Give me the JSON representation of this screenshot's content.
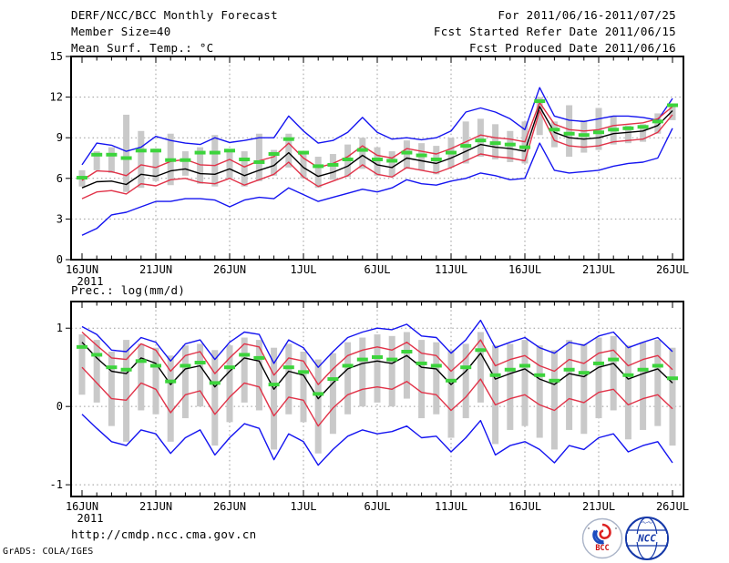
{
  "header": {
    "title": "DERF/NCC/BCC Monthly Forecast",
    "member_size": "Member Size=40",
    "for_range": "For 2011/06/16-2011/07/25",
    "refer_date": "Fcst Started Refer Date 2011/06/15",
    "produced_date": "Fcst Produced Date 2011/06/16"
  },
  "footer": {
    "url": "http://cmdp.ncc.cma.gov.cn",
    "grads_credit": "GrADS: COLA/IGES",
    "bcc_logo_label": "BCC",
    "ncc_logo_label": "NCC"
  },
  "colors": {
    "max_min_line": "#1414f0",
    "std_line": "#e13248",
    "mean_line": "#000000",
    "climatology_dash": "#3cd43c",
    "spread_bar": "#c9c9c9",
    "grid": "#999999",
    "frame": "#000000"
  },
  "chart_data": [
    {
      "type": "line",
      "title": "Mean Surf. Temp.: °C",
      "x_start": "16JUN2011",
      "x_step_days": 1,
      "n_points": 41,
      "x_tick_labels": [
        "16JUN",
        "21JUN",
        "26JUN",
        "1JUL",
        "6JUL",
        "11JUL",
        "16JUL",
        "21JUL",
        "26JUL"
      ],
      "x_sub_label": "2011",
      "ylim": [
        0,
        15
      ],
      "yticks": [
        0,
        3,
        6,
        9,
        12,
        15
      ],
      "grid": true,
      "series": [
        {
          "name": "ensemble-max",
          "color": "max_min_line",
          "values": [
            7.0,
            8.6,
            8.45,
            8.0,
            8.3,
            9.1,
            8.8,
            8.6,
            8.5,
            9.0,
            8.65,
            8.8,
            9.0,
            9.0,
            10.6,
            9.5,
            8.6,
            8.8,
            9.4,
            10.5,
            9.4,
            8.9,
            9.0,
            8.85,
            9.0,
            9.5,
            10.9,
            11.2,
            10.9,
            10.4,
            9.6,
            12.7,
            10.6,
            10.3,
            10.2,
            10.4,
            10.6,
            10.6,
            10.5,
            10.3,
            11.9
          ]
        },
        {
          "name": "ensemble-min",
          "color": "max_min_line",
          "values": [
            1.8,
            2.3,
            3.3,
            3.5,
            3.9,
            4.3,
            4.3,
            4.5,
            4.5,
            4.4,
            3.9,
            4.4,
            4.6,
            4.5,
            5.3,
            4.8,
            4.3,
            4.6,
            4.9,
            5.2,
            5.0,
            5.3,
            5.9,
            5.6,
            5.5,
            5.8,
            6.0,
            6.4,
            6.2,
            5.9,
            6.0,
            8.6,
            6.6,
            6.4,
            6.5,
            6.6,
            6.9,
            7.1,
            7.2,
            7.5,
            9.7
          ]
        },
        {
          "name": "mean-plus-std",
          "color": "std_line",
          "values": [
            5.85,
            6.55,
            6.5,
            6.2,
            7.0,
            6.8,
            7.25,
            7.4,
            7.0,
            6.95,
            7.4,
            6.85,
            7.3,
            7.6,
            8.6,
            7.5,
            6.8,
            7.1,
            7.6,
            8.4,
            7.7,
            7.5,
            8.2,
            8.0,
            7.8,
            8.2,
            8.7,
            9.2,
            9.0,
            8.9,
            8.7,
            11.6,
            10.0,
            9.6,
            9.5,
            9.6,
            9.9,
            10.0,
            10.1,
            10.4,
            11.3
          ]
        },
        {
          "name": "mean-minus-std",
          "color": "std_line",
          "values": [
            4.5,
            5.0,
            5.1,
            4.85,
            5.6,
            5.45,
            5.9,
            6.0,
            5.7,
            5.6,
            6.0,
            5.5,
            5.9,
            6.3,
            7.2,
            6.1,
            5.4,
            5.8,
            6.2,
            7.0,
            6.3,
            6.1,
            6.8,
            6.6,
            6.4,
            6.8,
            7.3,
            7.8,
            7.6,
            7.5,
            7.3,
            11.0,
            8.8,
            8.4,
            8.3,
            8.4,
            8.7,
            8.8,
            8.9,
            9.4,
            10.7
          ]
        },
        {
          "name": "ensemble-mean",
          "color": "mean_line",
          "values": [
            5.3,
            5.75,
            5.8,
            5.55,
            6.3,
            6.15,
            6.55,
            6.7,
            6.35,
            6.3,
            6.7,
            6.2,
            6.6,
            6.95,
            7.9,
            6.8,
            6.15,
            6.45,
            6.9,
            7.7,
            7.0,
            6.8,
            7.5,
            7.3,
            7.1,
            7.5,
            8.0,
            8.5,
            8.3,
            8.2,
            8.0,
            11.3,
            9.4,
            9.0,
            8.9,
            9.0,
            9.3,
            9.4,
            9.5,
            9.9,
            11.0
          ]
        },
        {
          "name": "climatology",
          "color": "climatology_dash",
          "style": "dash-markers",
          "values": [
            6.05,
            7.75,
            7.75,
            7.5,
            8.05,
            8.05,
            7.35,
            7.35,
            7.9,
            7.9,
            8.05,
            7.4,
            7.2,
            7.8,
            8.9,
            7.9,
            6.9,
            7.0,
            7.4,
            8.1,
            7.4,
            7.3,
            7.9,
            7.7,
            7.4,
            7.9,
            8.4,
            8.8,
            8.6,
            8.5,
            8.3,
            11.7,
            9.6,
            9.3,
            9.2,
            9.4,
            9.6,
            9.7,
            9.8,
            10.2,
            11.4
          ]
        }
      ],
      "bars": {
        "name": "ensemble-spread",
        "color": "spread_bar",
        "high": [
          6.6,
          8.0,
          8.3,
          10.7,
          9.5,
          8.2,
          9.3,
          8.0,
          8.3,
          9.2,
          8.1,
          8.0,
          9.3,
          8.1,
          9.3,
          8.0,
          7.6,
          7.8,
          8.5,
          9.0,
          8.3,
          8.0,
          8.8,
          8.6,
          8.4,
          9.0,
          10.2,
          10.4,
          10.0,
          9.5,
          10.2,
          12.0,
          10.2,
          11.4,
          10.3,
          11.2,
          10.6,
          9.9,
          10.0,
          10.8,
          11.5
        ],
        "low": [
          5.4,
          6.6,
          6.4,
          5.0,
          5.3,
          5.8,
          5.5,
          6.2,
          5.6,
          5.4,
          6.0,
          5.4,
          5.8,
          6.2,
          6.8,
          6.0,
          5.3,
          5.9,
          6.1,
          6.7,
          6.2,
          6.1,
          6.7,
          6.6,
          6.3,
          6.8,
          7.1,
          7.6,
          7.4,
          7.2,
          7.1,
          9.2,
          8.3,
          7.6,
          7.9,
          8.1,
          8.5,
          8.6,
          8.7,
          9.3,
          10.3
        ]
      }
    },
    {
      "type": "line",
      "title": "Prec.: log(mm/d)",
      "x_start": "16JUN2011",
      "x_step_days": 1,
      "n_points": 41,
      "x_tick_labels": [
        "16JUN",
        "21JUN",
        "26JUN",
        "1JUL",
        "6JUL",
        "11JUL",
        "16JUL",
        "21JUL",
        "26JUL"
      ],
      "x_sub_label": "2011",
      "ylim": [
        -1.15,
        1.34
      ],
      "yticks": [
        -1,
        0,
        1
      ],
      "grid": true,
      "series": [
        {
          "name": "ensemble-max",
          "color": "max_min_line",
          "values": [
            1.02,
            0.92,
            0.72,
            0.7,
            0.88,
            0.82,
            0.58,
            0.8,
            0.85,
            0.6,
            0.82,
            0.95,
            0.92,
            0.55,
            0.85,
            0.75,
            0.5,
            0.7,
            0.88,
            0.95,
            1.0,
            0.98,
            1.05,
            0.9,
            0.88,
            0.68,
            0.85,
            1.1,
            0.75,
            0.82,
            0.88,
            0.75,
            0.68,
            0.82,
            0.78,
            0.9,
            0.95,
            0.75,
            0.82,
            0.88,
            0.7
          ]
        },
        {
          "name": "ensemble-min",
          "color": "max_min_line",
          "values": [
            -0.1,
            -0.28,
            -0.45,
            -0.5,
            -0.3,
            -0.35,
            -0.6,
            -0.4,
            -0.3,
            -0.62,
            -0.4,
            -0.22,
            -0.28,
            -0.68,
            -0.35,
            -0.45,
            -0.75,
            -0.55,
            -0.38,
            -0.3,
            -0.35,
            -0.32,
            -0.25,
            -0.4,
            -0.38,
            -0.58,
            -0.4,
            -0.18,
            -0.62,
            -0.5,
            -0.45,
            -0.55,
            -0.72,
            -0.5,
            -0.55,
            -0.4,
            -0.35,
            -0.58,
            -0.5,
            -0.45,
            -0.72
          ]
        },
        {
          "name": "mean-plus-std",
          "color": "std_line",
          "values": [
            0.95,
            0.78,
            0.62,
            0.6,
            0.8,
            0.72,
            0.45,
            0.65,
            0.7,
            0.42,
            0.62,
            0.8,
            0.76,
            0.4,
            0.62,
            0.58,
            0.28,
            0.48,
            0.65,
            0.72,
            0.76,
            0.72,
            0.82,
            0.68,
            0.65,
            0.45,
            0.62,
            0.85,
            0.52,
            0.6,
            0.65,
            0.52,
            0.45,
            0.6,
            0.55,
            0.68,
            0.72,
            0.52,
            0.6,
            0.65,
            0.47
          ]
        },
        {
          "name": "mean-minus-std",
          "color": "std_line",
          "values": [
            0.5,
            0.3,
            0.1,
            0.08,
            0.3,
            0.22,
            -0.08,
            0.15,
            0.2,
            -0.1,
            0.12,
            0.3,
            0.25,
            -0.12,
            0.12,
            0.08,
            -0.25,
            -0.02,
            0.15,
            0.22,
            0.25,
            0.22,
            0.32,
            0.18,
            0.15,
            -0.05,
            0.12,
            0.35,
            0.02,
            0.1,
            0.15,
            0.02,
            -0.05,
            0.1,
            0.05,
            0.18,
            0.22,
            0.02,
            0.1,
            0.15,
            -0.03
          ]
        },
        {
          "name": "ensemble-mean",
          "color": "mean_line",
          "values": [
            0.82,
            0.62,
            0.45,
            0.42,
            0.62,
            0.55,
            0.28,
            0.48,
            0.52,
            0.25,
            0.45,
            0.62,
            0.58,
            0.22,
            0.45,
            0.4,
            0.1,
            0.3,
            0.48,
            0.55,
            0.58,
            0.55,
            0.65,
            0.5,
            0.48,
            0.28,
            0.45,
            0.68,
            0.35,
            0.42,
            0.48,
            0.35,
            0.28,
            0.42,
            0.38,
            0.5,
            0.55,
            0.35,
            0.42,
            0.48,
            0.3
          ]
        },
        {
          "name": "climatology",
          "color": "climatology_dash",
          "style": "dash-markers",
          "values": [
            0.76,
            0.66,
            0.5,
            0.47,
            0.58,
            0.52,
            0.32,
            0.52,
            0.56,
            0.3,
            0.5,
            0.66,
            0.62,
            0.28,
            0.5,
            0.44,
            0.16,
            0.35,
            0.52,
            0.6,
            0.63,
            0.6,
            0.7,
            0.55,
            0.52,
            0.33,
            0.5,
            0.72,
            0.4,
            0.47,
            0.52,
            0.4,
            0.33,
            0.47,
            0.43,
            0.55,
            0.6,
            0.4,
            0.47,
            0.52,
            0.36
          ]
        }
      ],
      "bars": {
        "name": "ensemble-spread",
        "color": "spread_bar",
        "high": [
          0.92,
          0.85,
          0.7,
          0.85,
          0.8,
          0.75,
          0.65,
          0.78,
          0.8,
          0.72,
          0.78,
          0.88,
          0.85,
          0.75,
          0.8,
          0.7,
          0.6,
          0.68,
          0.82,
          0.88,
          0.92,
          0.9,
          0.95,
          0.85,
          0.82,
          0.72,
          0.8,
          0.95,
          0.78,
          0.8,
          0.85,
          0.78,
          0.72,
          0.85,
          0.8,
          0.88,
          0.9,
          0.78,
          0.82,
          0.85,
          0.75
        ],
        "low": [
          0.15,
          0.05,
          -0.25,
          -0.45,
          -0.05,
          -0.1,
          -0.45,
          -0.15,
          0.0,
          -0.5,
          -0.2,
          0.05,
          -0.05,
          -0.55,
          -0.1,
          -0.2,
          -0.6,
          -0.35,
          -0.1,
          0.0,
          0.05,
          0.0,
          0.1,
          -0.15,
          -0.1,
          -0.4,
          -0.15,
          0.05,
          -0.48,
          -0.3,
          -0.25,
          -0.4,
          -0.55,
          -0.3,
          -0.35,
          -0.15,
          -0.05,
          -0.42,
          -0.3,
          -0.25,
          -0.5
        ]
      }
    }
  ]
}
